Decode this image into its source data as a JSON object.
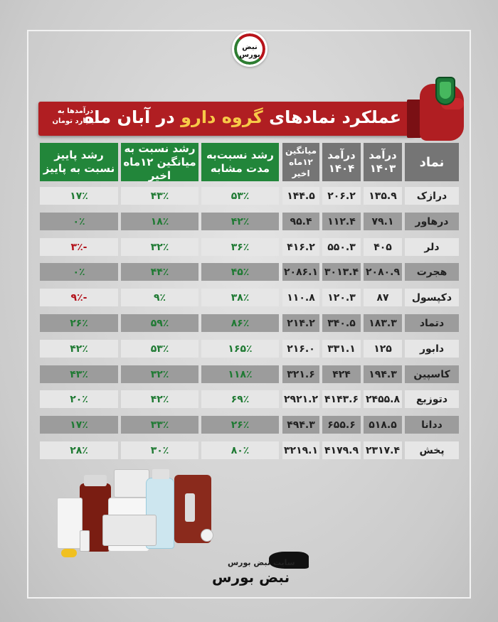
{
  "logo_text": "نبض بورس",
  "banner": {
    "title_part1": "عملکرد نمادهای",
    "title_highlight": "گروه دارو",
    "title_part2": "در آبان ماه",
    "note": "درآمدها به میلیارد تومان"
  },
  "headers": {
    "symbol": "نماد",
    "rev_1403": "درآمد ۱۴۰۳",
    "rev_1404": "درآمد ۱۴۰۴",
    "avg_12m": "میانگین ۱۲ماه اخیر",
    "growth_yoy": "رشد نسبت‌به مدت مشابه",
    "growth_vs_avg": "رشد نسبت به میانگین ۱۲ماه اخیر",
    "growth_vs_autumn": "رشد پاییز نسبت به پاییز"
  },
  "rows": [
    {
      "symbol": "درازک",
      "rev_1403": "۱۳۵.۹",
      "rev_1404": "۲۰۶.۲",
      "avg_12m": "۱۴۴.۵",
      "growth_yoy": "۵۳٪",
      "growth_vs_avg": "۴۳٪",
      "growth_vs_autumn": "۱۷٪",
      "autumn_neg": false
    },
    {
      "symbol": "درهاور",
      "rev_1403": "۷۹.۱",
      "rev_1404": "۱۱۲.۴",
      "avg_12m": "۹۵.۴",
      "growth_yoy": "۴۲٪",
      "growth_vs_avg": "۱۸٪",
      "growth_vs_autumn": "۰٪",
      "autumn_neg": false
    },
    {
      "symbol": "دلر",
      "rev_1403": "۴۰۵",
      "rev_1404": "۵۵۰.۳",
      "avg_12m": "۴۱۶.۲",
      "growth_yoy": "۳۶٪",
      "growth_vs_avg": "۳۲٪",
      "growth_vs_autumn": "-۳٪",
      "autumn_neg": true
    },
    {
      "symbol": "هجرت",
      "rev_1403": "۲۰۸۰.۹",
      "rev_1404": "۳۰۱۳.۴",
      "avg_12m": "۲۰۸۶.۱",
      "growth_yoy": "۴۵٪",
      "growth_vs_avg": "۴۴٪",
      "growth_vs_autumn": "۰٪",
      "autumn_neg": false
    },
    {
      "symbol": "دکپسول",
      "rev_1403": "۸۷",
      "rev_1404": "۱۲۰.۳",
      "avg_12m": "۱۱۰.۸",
      "growth_yoy": "۳۸٪",
      "growth_vs_avg": "۹٪",
      "growth_vs_autumn": "-۹٪",
      "autumn_neg": true
    },
    {
      "symbol": "دتماد",
      "rev_1403": "۱۸۳.۳",
      "rev_1404": "۳۴۰.۵",
      "avg_12m": "۲۱۴.۲",
      "growth_yoy": "۸۶٪",
      "growth_vs_avg": "۵۹٪",
      "growth_vs_autumn": "۲۶٪",
      "autumn_neg": false
    },
    {
      "symbol": "دابور",
      "rev_1403": "۱۲۵",
      "rev_1404": "۳۳۱.۱",
      "avg_12m": "۲۱۶.۰",
      "growth_yoy": "۱۶۵٪",
      "growth_vs_avg": "۵۳٪",
      "growth_vs_autumn": "۴۲٪",
      "autumn_neg": false
    },
    {
      "symbol": "کاسپین",
      "rev_1403": "۱۹۴.۳",
      "rev_1404": "۴۲۴",
      "avg_12m": "۳۲۱.۶",
      "growth_yoy": "۱۱۸٪",
      "growth_vs_avg": "۳۲٪",
      "growth_vs_autumn": "۴۳٪",
      "autumn_neg": false
    },
    {
      "symbol": "دتوزیع",
      "rev_1403": "۲۴۵۵.۸",
      "rev_1404": "۴۱۴۳.۶",
      "avg_12m": "۲۹۲۱.۲",
      "growth_yoy": "۶۹٪",
      "growth_vs_avg": "۴۲٪",
      "growth_vs_autumn": "۲۰٪",
      "autumn_neg": false
    },
    {
      "symbol": "ددانا",
      "rev_1403": "۵۱۸.۵",
      "rev_1404": "۶۵۵.۶",
      "avg_12m": "۴۹۴.۳",
      "growth_yoy": "۲۶٪",
      "growth_vs_avg": "۳۳٪",
      "growth_vs_autumn": "۱۷٪",
      "autumn_neg": false
    },
    {
      "symbol": "پخش",
      "rev_1403": "۲۳۱۷.۴",
      "rev_1404": "۴۱۷۹.۹",
      "avg_12m": "۳۲۱۹.۱",
      "growth_yoy": "۸۰٪",
      "growth_vs_avg": "۳۰٪",
      "growth_vs_autumn": "۲۸٪",
      "autumn_neg": false
    }
  ],
  "footer": {
    "site_label": "سایت نبض بورس",
    "brand": "نبض بورس"
  },
  "colors": {
    "banner_red": "#b01e22",
    "highlight_yellow": "#f7c948",
    "header_gray": "#757575",
    "header_green": "#22863a",
    "positive_green": "#1f7a33",
    "negative_red": "#b3111a"
  }
}
